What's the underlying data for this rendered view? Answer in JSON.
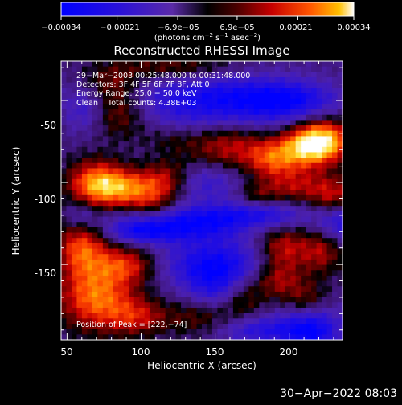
{
  "colorbar": {
    "tick_labels": [
      "−0.00034",
      "−0.00021",
      "−6.9e−05",
      "6.9e−05",
      "0.00021",
      "0.00034"
    ],
    "tick_values": [
      -0.00034,
      -0.00021,
      -6.9e-05,
      6.9e-05,
      0.00021,
      0.00034
    ],
    "unit_prefix": "(photons cm",
    "unit_exp1": "−2",
    "unit_mid": " s",
    "unit_exp2": "−1",
    "unit_suffix": " asec",
    "unit_exp3": "−2",
    "unit_close": ")",
    "colors": [
      "#0000ff",
      "#2a11d8",
      "#5a2aa8",
      "#000000",
      "#4a0000",
      "#c80000",
      "#ff5500",
      "#ffc000",
      "#ffffff"
    ]
  },
  "chart_data": {
    "type": "heatmap",
    "title": "Reconstructed RHESSI Image",
    "xlabel": "Heliocentric X (arcsec)",
    "ylabel": "Heliocentric Y (arcsec)",
    "xlim": [
      46,
      236
    ],
    "ylim": [
      -196,
      -26
    ],
    "x_ticks": [
      50,
      100,
      150,
      200
    ],
    "y_ticks": [
      -50,
      -100,
      -150
    ],
    "annotations": [
      "29−Mar−2003 00:25:48.000 to 00:31:48.000",
      "Detectors: 3F 4F 5F 6F 7F 8F, Att 0",
      "Energy Range: 25.0 − 50.0 keV",
      "Clean    Total counts: 4.38E+03"
    ],
    "peak_label": "Position of Peak = [222,−74]",
    "peak": [
      222,
      -74
    ],
    "grid": "off"
  },
  "timestamp": "30−Apr−2022 08:03"
}
